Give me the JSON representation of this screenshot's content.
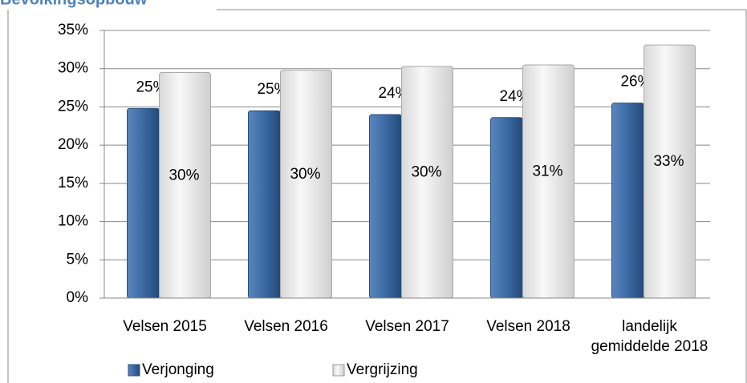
{
  "chart_data": {
    "type": "bar",
    "title": "Bevolkingsopbouw",
    "categories": [
      "Velsen 2015",
      "Velsen 2016",
      "Velsen 2017",
      "Velsen 2018",
      "landelijk gemiddelde 2018"
    ],
    "series": [
      {
        "name": "Verjonging",
        "color": "#3b6aa3",
        "values": [
          24.8,
          24.5,
          24.0,
          23.6,
          25.5
        ],
        "value_labels": [
          "25%",
          "25%",
          "24%",
          "24%",
          "26%"
        ]
      },
      {
        "name": "Vergrijzing",
        "color": "#e8e8e8",
        "values": [
          29.5,
          29.8,
          30.3,
          30.5,
          33.1
        ],
        "value_labels": [
          "30%",
          "30%",
          "30%",
          "31%",
          "33%"
        ]
      }
    ],
    "ylim": [
      0,
      35
    ],
    "yticks": [
      {
        "value": 0,
        "label": "0%"
      },
      {
        "value": 5,
        "label": "5%"
      },
      {
        "value": 10,
        "label": "10%"
      },
      {
        "value": 15,
        "label": "15%"
      },
      {
        "value": 20,
        "label": "20%"
      },
      {
        "value": 25,
        "label": "25%"
      },
      {
        "value": 30,
        "label": "30%"
      },
      {
        "value": 35,
        "label": "35%"
      }
    ],
    "grid": true,
    "legend": "bottom"
  }
}
